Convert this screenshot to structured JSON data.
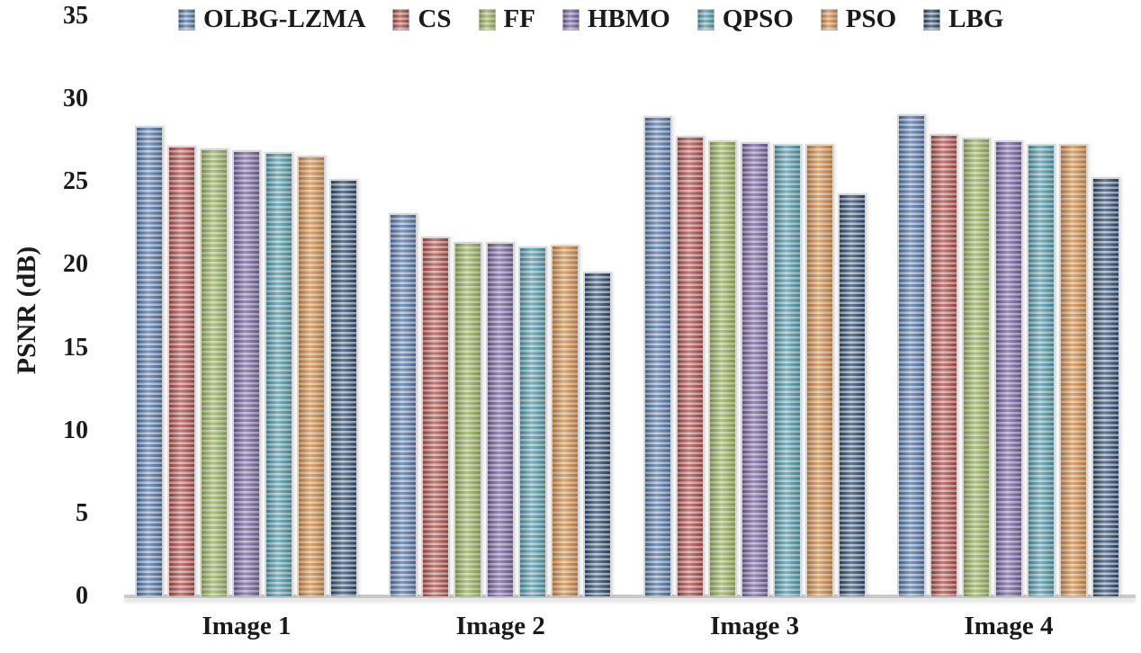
{
  "chart_data": {
    "type": "bar",
    "title": "",
    "xlabel": "",
    "ylabel": "PSNR (dB)",
    "ylim": [
      0,
      35
    ],
    "yticks": [
      35,
      30,
      25,
      20,
      15,
      10,
      5,
      0
    ],
    "grid": false,
    "legend_position": "top",
    "categories": [
      "Image 1",
      "Image 2",
      "Image 3",
      "Image 4"
    ],
    "series": [
      {
        "name": "OLBG-LZMA",
        "color": "#4F74A8",
        "stripe_color": "#b3c0d2",
        "values": [
          28.4,
          23.1,
          29.0,
          29.1
        ]
      },
      {
        "name": "CS",
        "color": "#B04A46",
        "stripe_color": "#d0aba7",
        "values": [
          27.2,
          21.7,
          27.8,
          27.9
        ]
      },
      {
        "name": "FF",
        "color": "#92AE55",
        "stripe_color": "#c8d2ab",
        "values": [
          27.0,
          21.4,
          27.5,
          27.7
        ]
      },
      {
        "name": "HBMO",
        "color": "#75619C",
        "stripe_color": "#b6adcc",
        "values": [
          26.9,
          21.4,
          27.4,
          27.5
        ]
      },
      {
        "name": "QPSO",
        "color": "#4C97A8",
        "stripe_color": "#adc8d0",
        "values": [
          26.8,
          21.1,
          27.3,
          27.3
        ]
      },
      {
        "name": "PSO",
        "color": "#CF8742",
        "stripe_color": "#e0c3a2",
        "values": [
          26.6,
          21.2,
          27.3,
          27.3
        ]
      },
      {
        "name": "LBG",
        "color": "#2E4A6C",
        "stripe_color": "#a7b3c4",
        "values": [
          25.2,
          19.6,
          24.3,
          25.3
        ]
      }
    ]
  }
}
